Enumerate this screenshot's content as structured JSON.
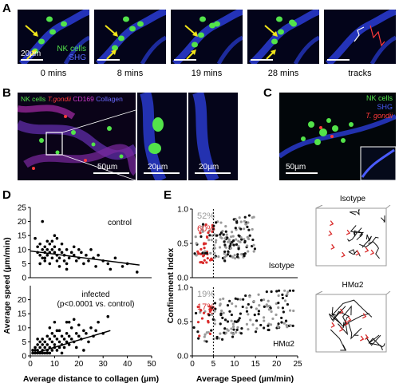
{
  "panel_labels": {
    "a": "A",
    "b": "B",
    "c": "C",
    "d": "D",
    "e": "E"
  },
  "panel_a": {
    "frames": [
      {
        "time": "0 mins"
      },
      {
        "time": "8 mins"
      },
      {
        "time": "19 mins"
      },
      {
        "time": "28 mins"
      },
      {
        "time": "tracks"
      }
    ],
    "legend_nk": "NK cells",
    "legend_shg": "SHG",
    "scalebar": "20µm",
    "colors": {
      "nk": "#53e34a",
      "shg": "#2a3cd6",
      "arrow": "#f2e51a"
    }
  },
  "panel_b": {
    "legend": [
      {
        "text": "NK cells",
        "color": "#53e34a"
      },
      {
        "text": "T.gondii",
        "color": "#ff3a3a"
      },
      {
        "text": "CD169",
        "color": "#d43ad0"
      },
      {
        "text": "Collagen",
        "color": "#6a6aff"
      }
    ],
    "scalebar_main": "50µm",
    "scalebar_zoom1": "20µm",
    "scalebar_zoom2": "20µm"
  },
  "panel_c": {
    "legend": [
      {
        "text": "NK cells",
        "color": "#53e34a"
      },
      {
        "text": "SHG",
        "color": "#4a5cff"
      },
      {
        "text": "T. gondii",
        "color": "#ff3a3a"
      }
    ],
    "scalebar": "50µm"
  },
  "chart_data": [
    {
      "type": "scatter",
      "id": "D-control",
      "annotation": "control",
      "ylim": [
        0,
        25
      ],
      "xlim": [
        0,
        50
      ],
      "y_ticks": [
        0,
        5,
        10,
        15,
        20,
        25
      ],
      "points": [
        [
          2,
          14
        ],
        [
          3,
          11
        ],
        [
          3,
          9
        ],
        [
          4,
          12
        ],
        [
          4,
          8
        ],
        [
          5,
          10
        ],
        [
          5,
          7
        ],
        [
          5,
          20
        ],
        [
          6,
          11
        ],
        [
          6,
          9
        ],
        [
          6,
          6
        ],
        [
          7,
          13
        ],
        [
          7,
          10
        ],
        [
          7,
          8
        ],
        [
          8,
          9
        ],
        [
          8,
          12
        ],
        [
          8,
          5
        ],
        [
          9,
          10
        ],
        [
          9,
          7
        ],
        [
          10,
          11
        ],
        [
          10,
          9
        ],
        [
          10,
          15
        ],
        [
          11,
          8
        ],
        [
          11,
          6
        ],
        [
          12,
          10
        ],
        [
          12,
          7
        ],
        [
          13,
          9
        ],
        [
          13,
          12
        ],
        [
          14,
          8
        ],
        [
          14,
          6
        ],
        [
          15,
          10
        ],
        [
          15,
          5
        ],
        [
          16,
          7
        ],
        [
          17,
          9
        ],
        [
          18,
          8
        ],
        [
          18,
          11
        ],
        [
          19,
          6
        ],
        [
          20,
          7
        ],
        [
          21,
          9
        ],
        [
          22,
          5
        ],
        [
          23,
          8
        ],
        [
          24,
          6
        ],
        [
          25,
          10
        ],
        [
          26,
          7
        ],
        [
          27,
          4
        ],
        [
          28,
          8
        ],
        [
          30,
          6
        ],
        [
          32,
          5
        ],
        [
          33,
          3
        ],
        [
          35,
          7
        ],
        [
          38,
          4
        ],
        [
          40,
          5
        ],
        [
          44,
          2
        ],
        [
          9,
          13
        ],
        [
          11,
          14
        ],
        [
          6,
          7
        ],
        [
          15,
          3
        ],
        [
          20,
          10
        ],
        [
          4,
          5
        ],
        [
          12,
          4
        ]
      ],
      "trend": [
        [
          0,
          9.5
        ],
        [
          45,
          4.5
        ]
      ]
    },
    {
      "type": "scatter",
      "id": "D-infected",
      "annotation_1": "infected",
      "annotation_2": "(p<0.0001 vs. control)",
      "ylim": [
        0,
        25
      ],
      "xlim": [
        0,
        50
      ],
      "y_ticks": [
        0,
        5,
        10,
        15,
        20
      ],
      "x_ticks": [
        0,
        10,
        20,
        30,
        40,
        50
      ],
      "ylabel": "Average speed (µm/min)",
      "xlabel": "Average distance to collagen (µm)",
      "points": [
        [
          1,
          1
        ],
        [
          1,
          2
        ],
        [
          2,
          1
        ],
        [
          2,
          3
        ],
        [
          2,
          2
        ],
        [
          3,
          1
        ],
        [
          3,
          4
        ],
        [
          3,
          2
        ],
        [
          4,
          3
        ],
        [
          4,
          1
        ],
        [
          4,
          5
        ],
        [
          5,
          2
        ],
        [
          5,
          4
        ],
        [
          5,
          6
        ],
        [
          6,
          3
        ],
        [
          6,
          1
        ],
        [
          6,
          5
        ],
        [
          7,
          2
        ],
        [
          7,
          4
        ],
        [
          7,
          7
        ],
        [
          8,
          3
        ],
        [
          8,
          6
        ],
        [
          8,
          1
        ],
        [
          9,
          5
        ],
        [
          9,
          2
        ],
        [
          9,
          8
        ],
        [
          10,
          4
        ],
        [
          10,
          3
        ],
        [
          10,
          7
        ],
        [
          11,
          6
        ],
        [
          11,
          2
        ],
        [
          12,
          5
        ],
        [
          12,
          9
        ],
        [
          12,
          3
        ],
        [
          13,
          4
        ],
        [
          13,
          7
        ],
        [
          14,
          6
        ],
        [
          14,
          3
        ],
        [
          15,
          8
        ],
        [
          15,
          5
        ],
        [
          15,
          12
        ],
        [
          16,
          4
        ],
        [
          16,
          7
        ],
        [
          17,
          10
        ],
        [
          17,
          6
        ],
        [
          18,
          5
        ],
        [
          18,
          13
        ],
        [
          19,
          8
        ],
        [
          20,
          7
        ],
        [
          20,
          11
        ],
        [
          21,
          6
        ],
        [
          22,
          9
        ],
        [
          23,
          8
        ],
        [
          24,
          5
        ],
        [
          25,
          10
        ],
        [
          26,
          7
        ],
        [
          27,
          9
        ],
        [
          28,
          12
        ],
        [
          30,
          8
        ],
        [
          32,
          14
        ],
        [
          3,
          6
        ],
        [
          5,
          1
        ],
        [
          7,
          1
        ],
        [
          11,
          9
        ],
        [
          13,
          1
        ],
        [
          19,
          3
        ],
        [
          22,
          2
        ],
        [
          8,
          10
        ],
        [
          10,
          12
        ],
        [
          16,
          12
        ]
      ],
      "trend": [
        [
          2,
          1
        ],
        [
          33,
          9
        ]
      ]
    },
    {
      "type": "scatter",
      "id": "E-isotype",
      "annotation": "Isotype",
      "pct_grey": "52%",
      "pct_red": "60%",
      "ylim": [
        0,
        1.0
      ],
      "y_ticks": [
        "0.0",
        "0.5",
        "1.0"
      ],
      "threshold_x": 5,
      "xlim": [
        0,
        25
      ]
    },
    {
      "type": "scatter",
      "id": "E-hma2",
      "annotation": "HMα2",
      "pct_grey": "19%",
      "pct_red": "17%",
      "ylim": [
        0,
        1.0
      ],
      "y_ticks": [
        "0.0",
        "0.5",
        "1.0"
      ],
      "x_ticks": [
        0,
        5,
        10,
        15,
        20,
        25
      ],
      "threshold_x": 5,
      "xlim": [
        0,
        25
      ],
      "ylabel": "Confinement Index",
      "xlabel": "Average Speed (µm/min)"
    }
  ],
  "panel_e_tracks": [
    {
      "title": "Isotype"
    },
    {
      "title": "HMα2"
    }
  ],
  "colors": {
    "grey_pts": "#9a9a9a",
    "red_pts": "#d92b2b",
    "black_pts": "#111111"
  }
}
